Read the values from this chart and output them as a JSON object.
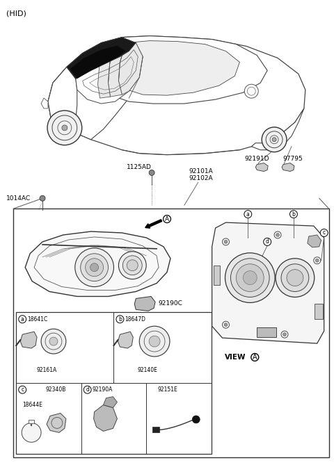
{
  "background_color": "#ffffff",
  "text_color": "#000000",
  "fig_width": 4.8,
  "fig_height": 6.69,
  "dpi": 100,
  "labels": {
    "hid": "(HID)",
    "bolt1": "1125AD",
    "bolt2": "1014AC",
    "part1": "92101A",
    "part2": "92102A",
    "part3": "92191D",
    "part4": "97795",
    "part5": "92190C",
    "sub_a1": "18641C",
    "sub_a2": "92161A",
    "sub_b1": "18647D",
    "sub_b2": "92140E",
    "sub_c1": "92340B",
    "sub_c2": "18644E",
    "sub_d1": "92190A",
    "sub_e1": "92151E",
    "view": "VIEW",
    "view_a": "A"
  }
}
